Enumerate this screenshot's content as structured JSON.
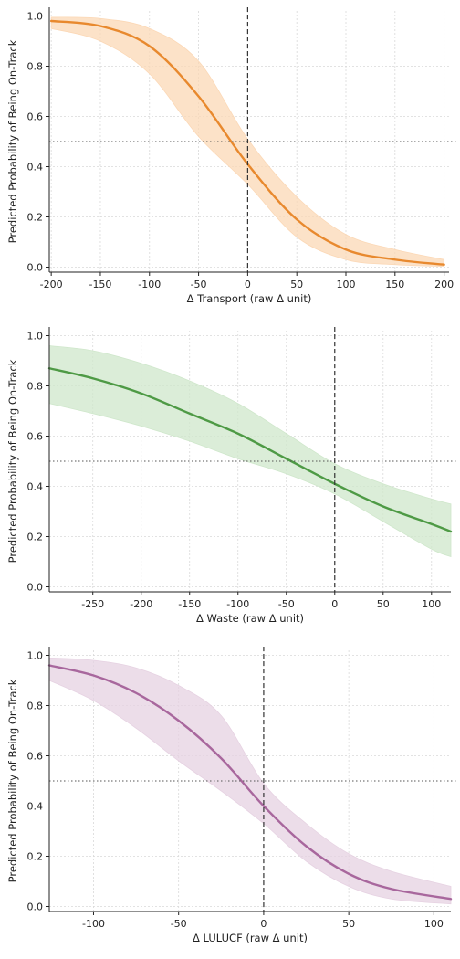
{
  "chart_data": [
    {
      "type": "line",
      "xlabel": "Δ Transport (raw Δ unit)",
      "ylabel": "Predicted Probability of Being On-Track",
      "xlim": [
        -202,
        205
      ],
      "ylim": [
        -0.02,
        1.02
      ],
      "xticks": [
        -200,
        -150,
        -100,
        -50,
        0,
        50,
        100,
        150,
        200
      ],
      "yticks": [
        0.0,
        0.2,
        0.4,
        0.6,
        0.8,
        1.0
      ],
      "grid": true,
      "color": "#e8892e",
      "band_color": "#fbd8b6",
      "vline_x": 0,
      "hline_y": 0.5,
      "series": [
        {
          "x": [
            -200,
            -150,
            -100,
            -50,
            0,
            50,
            100,
            150,
            200
          ],
          "y": [
            0.98,
            0.96,
            0.88,
            0.68,
            0.41,
            0.19,
            0.07,
            0.03,
            0.01
          ],
          "lower": [
            0.95,
            0.9,
            0.77,
            0.52,
            0.33,
            0.12,
            0.03,
            0.01,
            0.003
          ],
          "upper": [
            0.995,
            0.99,
            0.95,
            0.82,
            0.51,
            0.28,
            0.13,
            0.07,
            0.03
          ]
        }
      ]
    },
    {
      "type": "line",
      "xlabel": "Δ Waste (raw Δ unit)",
      "ylabel": "Predicted Probability of Being On-Track",
      "xlim": [
        -295,
        120
      ],
      "ylim": [
        -0.02,
        1.02
      ],
      "xticks": [
        -250,
        -200,
        -150,
        -100,
        -50,
        0,
        50,
        100
      ],
      "yticks": [
        0.0,
        0.2,
        0.4,
        0.6,
        0.8,
        1.0
      ],
      "grid": true,
      "color": "#4e9a45",
      "band_color": "#cfe7cb",
      "vline_x": 0,
      "hline_y": 0.5,
      "series": [
        {
          "x": [
            -295,
            -250,
            -200,
            -150,
            -100,
            -50,
            0,
            50,
            100,
            120
          ],
          "y": [
            0.87,
            0.83,
            0.77,
            0.69,
            0.61,
            0.51,
            0.41,
            0.32,
            0.25,
            0.22
          ],
          "lower": [
            0.73,
            0.69,
            0.64,
            0.58,
            0.51,
            0.45,
            0.37,
            0.26,
            0.15,
            0.12
          ],
          "upper": [
            0.96,
            0.94,
            0.89,
            0.82,
            0.73,
            0.61,
            0.49,
            0.41,
            0.35,
            0.33
          ]
        }
      ]
    },
    {
      "type": "line",
      "xlabel": "Δ LULUCF (raw Δ unit)",
      "ylabel": "Predicted Probability of Being On-Track",
      "xlim": [
        -126,
        110
      ],
      "ylim": [
        -0.02,
        1.02
      ],
      "xticks": [
        -100,
        -50,
        0,
        50,
        100
      ],
      "yticks": [
        0.0,
        0.2,
        0.4,
        0.6,
        0.8,
        1.0
      ],
      "grid": true,
      "color": "#a8679d",
      "band_color": "#e6d2e2",
      "vline_x": 0,
      "hline_y": 0.5,
      "series": [
        {
          "x": [
            -126,
            -100,
            -75,
            -50,
            -25,
            0,
            25,
            50,
            75,
            110
          ],
          "y": [
            0.96,
            0.92,
            0.85,
            0.74,
            0.59,
            0.4,
            0.24,
            0.13,
            0.07,
            0.03
          ],
          "lower": [
            0.9,
            0.82,
            0.71,
            0.58,
            0.46,
            0.33,
            0.18,
            0.08,
            0.03,
            0.01
          ],
          "upper": [
            0.99,
            0.98,
            0.95,
            0.88,
            0.76,
            0.49,
            0.33,
            0.21,
            0.14,
            0.08
          ]
        }
      ]
    }
  ]
}
